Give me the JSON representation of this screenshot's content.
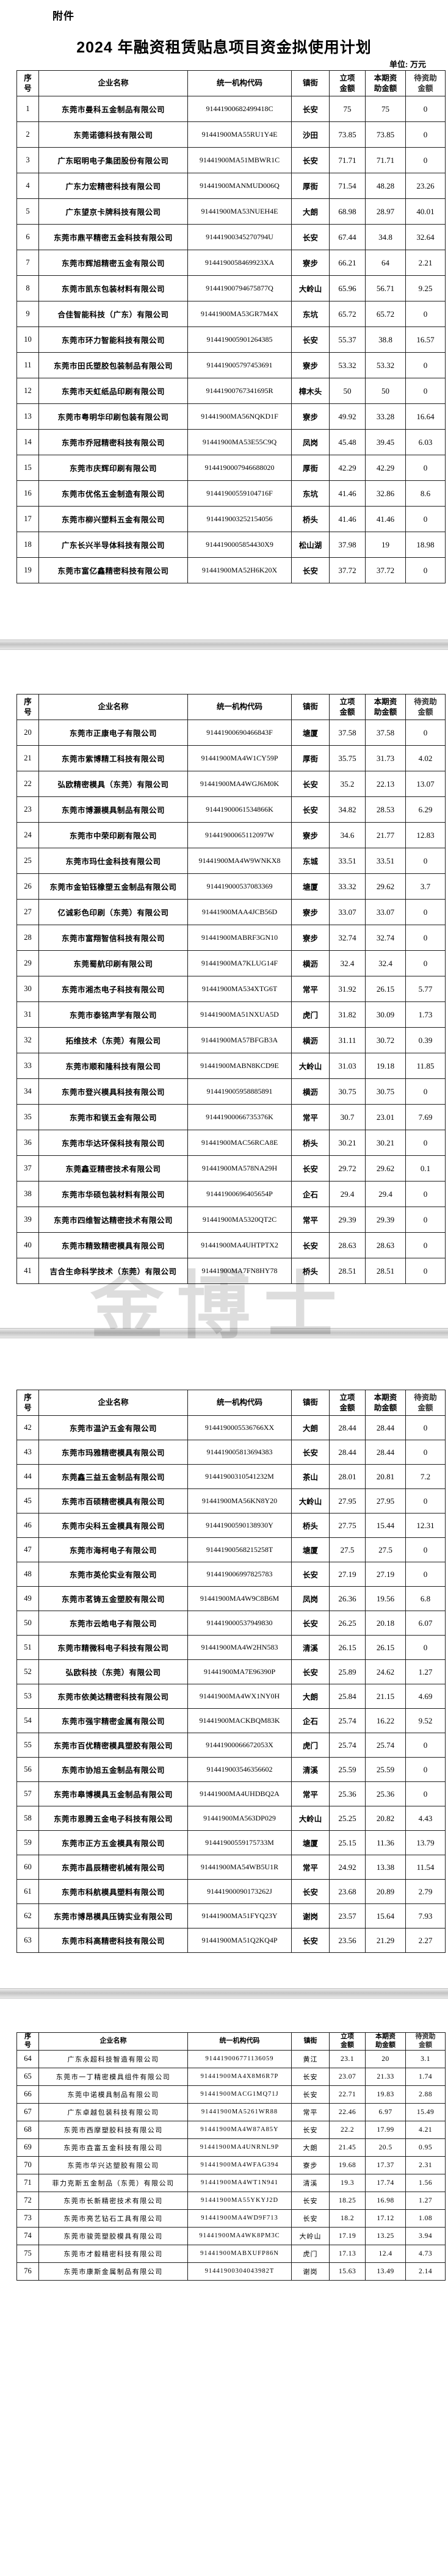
{
  "document": {
    "attachment_label": "附件",
    "title": "2024 年融资租赁贴息项目资金拟使用计划",
    "unit_note": "单位: 万元",
    "watermark": "金博士"
  },
  "table": {
    "column_labels": [
      "序\n号",
      "企业名称",
      "统一机构代码",
      "镇街",
      "立项\n金额",
      "本期资\n助金额",
      "待资助\n金额"
    ],
    "column_keys": [
      "seq",
      "company-name",
      "org-code",
      "town",
      "project-amount",
      "current-subsidy-amount",
      "pending-subsidy-amount"
    ]
  },
  "tables": [
    {
      "page": 1,
      "rows": [
        [
          "1",
          "东莞市曼科五金制品有限公司",
          "91441900682499418C",
          "长安",
          "75",
          "75",
          "0"
        ],
        [
          "2",
          "东莞诺德科技有限公司",
          "91441900MA55RU1Y4E",
          "沙田",
          "73.85",
          "73.85",
          "0"
        ],
        [
          "3",
          "广东昭明电子集团股份有限公司",
          "91441900MA51MBWR1C",
          "长安",
          "71.71",
          "71.71",
          "0"
        ],
        [
          "4",
          "广东力宏精密科技有限公司",
          "91441900MANMUD006Q",
          "厚街",
          "71.54",
          "48.28",
          "23.26"
        ],
        [
          "5",
          "广东望京卡牌科技有限公司",
          "91441900MA53NUEH4E",
          "大朗",
          "68.98",
          "28.97",
          "40.01"
        ],
        [
          "6",
          "东莞市鼎平精密五金科技有限公司",
          "91441900345270794U",
          "长安",
          "67.44",
          "34.8",
          "32.64"
        ],
        [
          "7",
          "东莞市辉旭精密五金有限公司",
          "9144190058469923XA",
          "寮步",
          "66.21",
          "64",
          "2.21"
        ],
        [
          "8",
          "东莞市凯东包装材料有限公司",
          "91441900794675877Q",
          "大岭山",
          "65.96",
          "56.71",
          "9.25"
        ],
        [
          "9",
          "合佳智能科技（广东）有限公司",
          "91441900MA53GR7M4X",
          "东坑",
          "65.72",
          "65.72",
          "0"
        ],
        [
          "10",
          "东莞市环力智能科技有限公司",
          "914419005901264385",
          "长安",
          "55.37",
          "38.8",
          "16.57"
        ],
        [
          "11",
          "东莞市田氏塑胶包装制品有限公司",
          "914419005797453691",
          "寮步",
          "53.32",
          "53.32",
          "0"
        ],
        [
          "12",
          "东莞市天虹纸品印刷有限公司",
          "91441900767341695R",
          "樟木头",
          "50",
          "50",
          "0"
        ],
        [
          "13",
          "东莞市粤明华印刷包装有限公司",
          "91441900MA56NQKD1F",
          "寮步",
          "49.92",
          "33.28",
          "16.64"
        ],
        [
          "14",
          "东莞市乔冠精密科技有限公司",
          "91441900MA53E55C9Q",
          "凤岗",
          "45.48",
          "39.45",
          "6.03"
        ],
        [
          "15",
          "东莞市庆辉印刷有限公司",
          "9144190007946688020",
          "厚街",
          "42.29",
          "42.29",
          "0"
        ],
        [
          "16",
          "东莞市优佲五金制造有限公司",
          "91441900559104716F",
          "东坑",
          "41.46",
          "32.86",
          "8.6"
        ],
        [
          "17",
          "东莞市柳兴塑料五金有限公司",
          "914419003252154056",
          "桥头",
          "41.46",
          "41.46",
          "0"
        ],
        [
          "18",
          "广东长兴半导体科技有限公司",
          "9144190005854430X9",
          "松山湖",
          "37.98",
          "19",
          "18.98"
        ],
        [
          "19",
          "东莞市富亿鑫精密科技有限公司",
          "91441900MA52H6K20X",
          "长安",
          "37.72",
          "37.72",
          "0"
        ]
      ]
    },
    {
      "page": 2,
      "rows": [
        [
          "20",
          "东莞市正康电子有限公司",
          "91441900690466843F",
          "塘厦",
          "37.58",
          "37.58",
          "0"
        ],
        [
          "21",
          "东莞市紫博精工科技有限公司",
          "91441900MA4W1CY59P",
          "厚街",
          "35.75",
          "31.73",
          "4.02"
        ],
        [
          "22",
          "弘欧精密模具（东莞）有限公司",
          "91441900MA4WGJ6M0K",
          "长安",
          "35.2",
          "22.13",
          "13.07"
        ],
        [
          "23",
          "东莞市博灏模具制品有限公司",
          "91441900061534866K",
          "长安",
          "34.82",
          "28.53",
          "6.29"
        ],
        [
          "24",
          "东莞市中荣印刷有限公司",
          "91441900065112097W",
          "寮步",
          "34.6",
          "21.77",
          "12.83"
        ],
        [
          "25",
          "东莞市玛仕金科技有限公司",
          "91441900MA4W9WNKX8",
          "东城",
          "33.51",
          "33.51",
          "0"
        ],
        [
          "26",
          "东莞市金铂钰橡塑五金制品有限公司",
          "914419000537083369",
          "塘厦",
          "33.32",
          "29.62",
          "3.7"
        ],
        [
          "27",
          "亿诚彩色印刷（东莞）有限公司",
          "91441900MAA4JCB56D",
          "寮步",
          "33.07",
          "33.07",
          "0"
        ],
        [
          "28",
          "东莞市富翔智信科技有限公司",
          "91441900MABRF3GN10",
          "寮步",
          "32.74",
          "32.74",
          "0"
        ],
        [
          "29",
          "东莞蜀航印刷有限公司",
          "91441900MA7KLUG14F",
          "横沥",
          "32.4",
          "32.4",
          "0"
        ],
        [
          "30",
          "东莞市湘杰电子科技有限公司",
          "91441900MA534XTG6T",
          "常平",
          "31.92",
          "26.15",
          "5.77"
        ],
        [
          "31",
          "东莞市泰铭声学有限公司",
          "91441900MA51NXUA5D",
          "虎门",
          "31.82",
          "30.09",
          "1.73"
        ],
        [
          "32",
          "拓维技术（东莞）有限公司",
          "91441900MA57BFGB3A",
          "横沥",
          "31.11",
          "30.72",
          "0.39"
        ],
        [
          "33",
          "东莞市顺和隆科技有限公司",
          "91441900MABN8KCD9E",
          "大岭山",
          "31.03",
          "19.18",
          "11.85"
        ],
        [
          "34",
          "东莞市登兴模具科技有限公司",
          "914419005958885891",
          "横沥",
          "30.75",
          "30.75",
          "0"
        ],
        [
          "35",
          "东莞市和镁五金有限公司",
          "91441900066735376K",
          "常平",
          "30.7",
          "23.01",
          "7.69"
        ],
        [
          "36",
          "东莞市华达环保科技有限公司",
          "91441900MAC56RCA8E",
          "桥头",
          "30.21",
          "30.21",
          "0"
        ],
        [
          "37",
          "东莞鑫亚精密技术有限公司",
          "91441900MA578NA29H",
          "长安",
          "29.72",
          "29.62",
          "0.1"
        ],
        [
          "38",
          "东莞市华硕包装材料有限公司",
          "91441900696405654P",
          "企石",
          "29.4",
          "29.4",
          "0"
        ],
        [
          "39",
          "东莞市四维智达精密技术有限公司",
          "91441900MA5320QT2C",
          "常平",
          "29.39",
          "29.39",
          "0"
        ],
        [
          "40",
          "东莞市精致精密模具有限公司",
          "91441900MA4UHTPTX2",
          "长安",
          "28.63",
          "28.63",
          "0"
        ],
        [
          "41",
          "吉合生命科学技术（东莞）有限公司",
          "91441900MA7FN8HY78",
          "桥头",
          "28.51",
          "28.51",
          "0"
        ]
      ]
    },
    {
      "page": 3,
      "rows": [
        [
          "42",
          "东莞市温沪五金有限公司",
          "9144190005536766XX",
          "大朗",
          "28.44",
          "28.44",
          "0"
        ],
        [
          "43",
          "东莞市玛雅精密模具有限公司",
          "914419005813694383",
          "长安",
          "28.44",
          "28.44",
          "0"
        ],
        [
          "44",
          "东莞鑫三益五金制品有限公司",
          "91441900310541232M",
          "茶山",
          "28.01",
          "20.81",
          "7.2"
        ],
        [
          "45",
          "东莞市百硕精密模具有限公司",
          "91441900MA56KN8Y20",
          "大岭山",
          "27.95",
          "27.95",
          "0"
        ],
        [
          "46",
          "东莞市尖科五金模具有限公司",
          "91441900590138930Y",
          "桥头",
          "27.75",
          "15.44",
          "12.31"
        ],
        [
          "47",
          "东莞市海柯电子有限公司",
          "91441900568215258T",
          "塘厦",
          "27.5",
          "27.5",
          "0"
        ],
        [
          "48",
          "东莞市英伦实业有限公司",
          "914419006997825783",
          "长安",
          "27.19",
          "27.19",
          "0"
        ],
        [
          "49",
          "东莞市茗铸五金塑胶有限公司",
          "91441900MA4W9C8B6M",
          "凤岗",
          "26.36",
          "19.56",
          "6.8"
        ],
        [
          "50",
          "东莞市云皓电子有限公司",
          "914419000537949830",
          "长安",
          "26.25",
          "20.18",
          "6.07"
        ],
        [
          "51",
          "东莞市精微科电子科技有限公司",
          "91441900MA4W2HN583",
          "清溪",
          "26.15",
          "26.15",
          "0"
        ],
        [
          "52",
          "弘欧科技（东莞）有限公司",
          "91441900MA7E96390P",
          "长安",
          "25.89",
          "24.62",
          "1.27"
        ],
        [
          "53",
          "东莞市依美达精密科技有限公司",
          "91441900MA4WX1NY0H",
          "大朗",
          "25.84",
          "21.15",
          "4.69"
        ],
        [
          "54",
          "东莞市强宇精密金属有限公司",
          "91441900MACKBQM83K",
          "企石",
          "25.74",
          "16.22",
          "9.52"
        ],
        [
          "55",
          "东莞市百优精密模具塑胶有限公司",
          "91441900066672053X",
          "虎门",
          "25.74",
          "25.74",
          "0"
        ],
        [
          "56",
          "东莞市协旭五金制品有限公司",
          "914419003546356602",
          "清溪",
          "25.59",
          "25.59",
          "0"
        ],
        [
          "57",
          "东莞市皋博模具五金制品有限公司",
          "91441900MA4UHDBQ2A",
          "常平",
          "25.36",
          "25.36",
          "0"
        ],
        [
          "58",
          "东莞市恩腾五金电子科技有限公司",
          "91441900MA563DP029",
          "大岭山",
          "25.25",
          "20.82",
          "4.43"
        ],
        [
          "59",
          "东莞市正方五金模具有限公司",
          "91441900559175733M",
          "塘厦",
          "25.15",
          "11.36",
          "13.79"
        ],
        [
          "60",
          "东莞市昌辰精密机械有限公司",
          "91441900MA54WB5U1R",
          "常平",
          "24.92",
          "13.38",
          "11.54"
        ],
        [
          "61",
          "东莞市科航模具塑料有限公司",
          "91441900090173262J",
          "长安",
          "23.68",
          "20.89",
          "2.79"
        ],
        [
          "62",
          "东莞市博昂模具压铸实业有限公司",
          "91441900MA51FYQ23Y",
          "谢岗",
          "23.57",
          "15.64",
          "7.93"
        ],
        [
          "63",
          "东莞市科高精密科技有限公司",
          "91441900MA51Q2KQ4P",
          "长安",
          "23.56",
          "21.29",
          "2.27"
        ]
      ]
    },
    {
      "page": 4,
      "rows": [
        [
          "64",
          "广东永超科技智造有限公司",
          "914419006771136059",
          "黄江",
          "23.1",
          "20",
          "3.1"
        ],
        [
          "65",
          "东莞市一丁精密模具组件有限公司",
          "91441900MA4X8M6R7P",
          "长安",
          "23.07",
          "21.33",
          "1.74"
        ],
        [
          "66",
          "东莞中诺模具制品有限公司",
          "91441900MACG1MQ71J",
          "长安",
          "22.71",
          "19.83",
          "2.88"
        ],
        [
          "67",
          "广东卓越包装科技有限公司",
          "91441900MA5261WR88",
          "常平",
          "22.46",
          "6.97",
          "15.49"
        ],
        [
          "68",
          "东莞市西摩塑胶科技有限公司",
          "91441900MA4W87A85Y",
          "长安",
          "22.2",
          "17.99",
          "4.21"
        ],
        [
          "69",
          "东莞市垚富五金科技有限公司",
          "91441900MA4UNRNL9P",
          "大朗",
          "21.45",
          "20.5",
          "0.95"
        ],
        [
          "70",
          "东莞市华兴达塑胶有限公司",
          "91441900MA4WFAG394",
          "寮步",
          "19.68",
          "17.37",
          "2.31"
        ],
        [
          "71",
          "菲力克斯五金制品（东莞）有限公司",
          "91441900MA4WT1N941",
          "清溪",
          "19.3",
          "17.74",
          "1.56"
        ],
        [
          "72",
          "东莞市长新精密技术有限公司",
          "91441900MA55YKYJ2D",
          "长安",
          "18.25",
          "16.98",
          "1.27"
        ],
        [
          "73",
          "东莞市亮艺钻石工具有限公司",
          "91441900MA4WD9F713",
          "长安",
          "18.2",
          "17.12",
          "1.08"
        ],
        [
          "74",
          "东莞市骏莞塑胶模具有限公司",
          "91441900MA4WK8PM3C",
          "大岭山",
          "17.19",
          "13.25",
          "3.94"
        ],
        [
          "75",
          "东莞市才毅精密科技有限公司",
          "91441900MABXUFP86N",
          "虎门",
          "17.13",
          "12.4",
          "4.73"
        ],
        [
          "76",
          "东莞市康斯金属制品有限公司",
          "91441900304043982T",
          "谢岗",
          "15.63",
          "13.49",
          "2.14"
        ]
      ]
    }
  ]
}
